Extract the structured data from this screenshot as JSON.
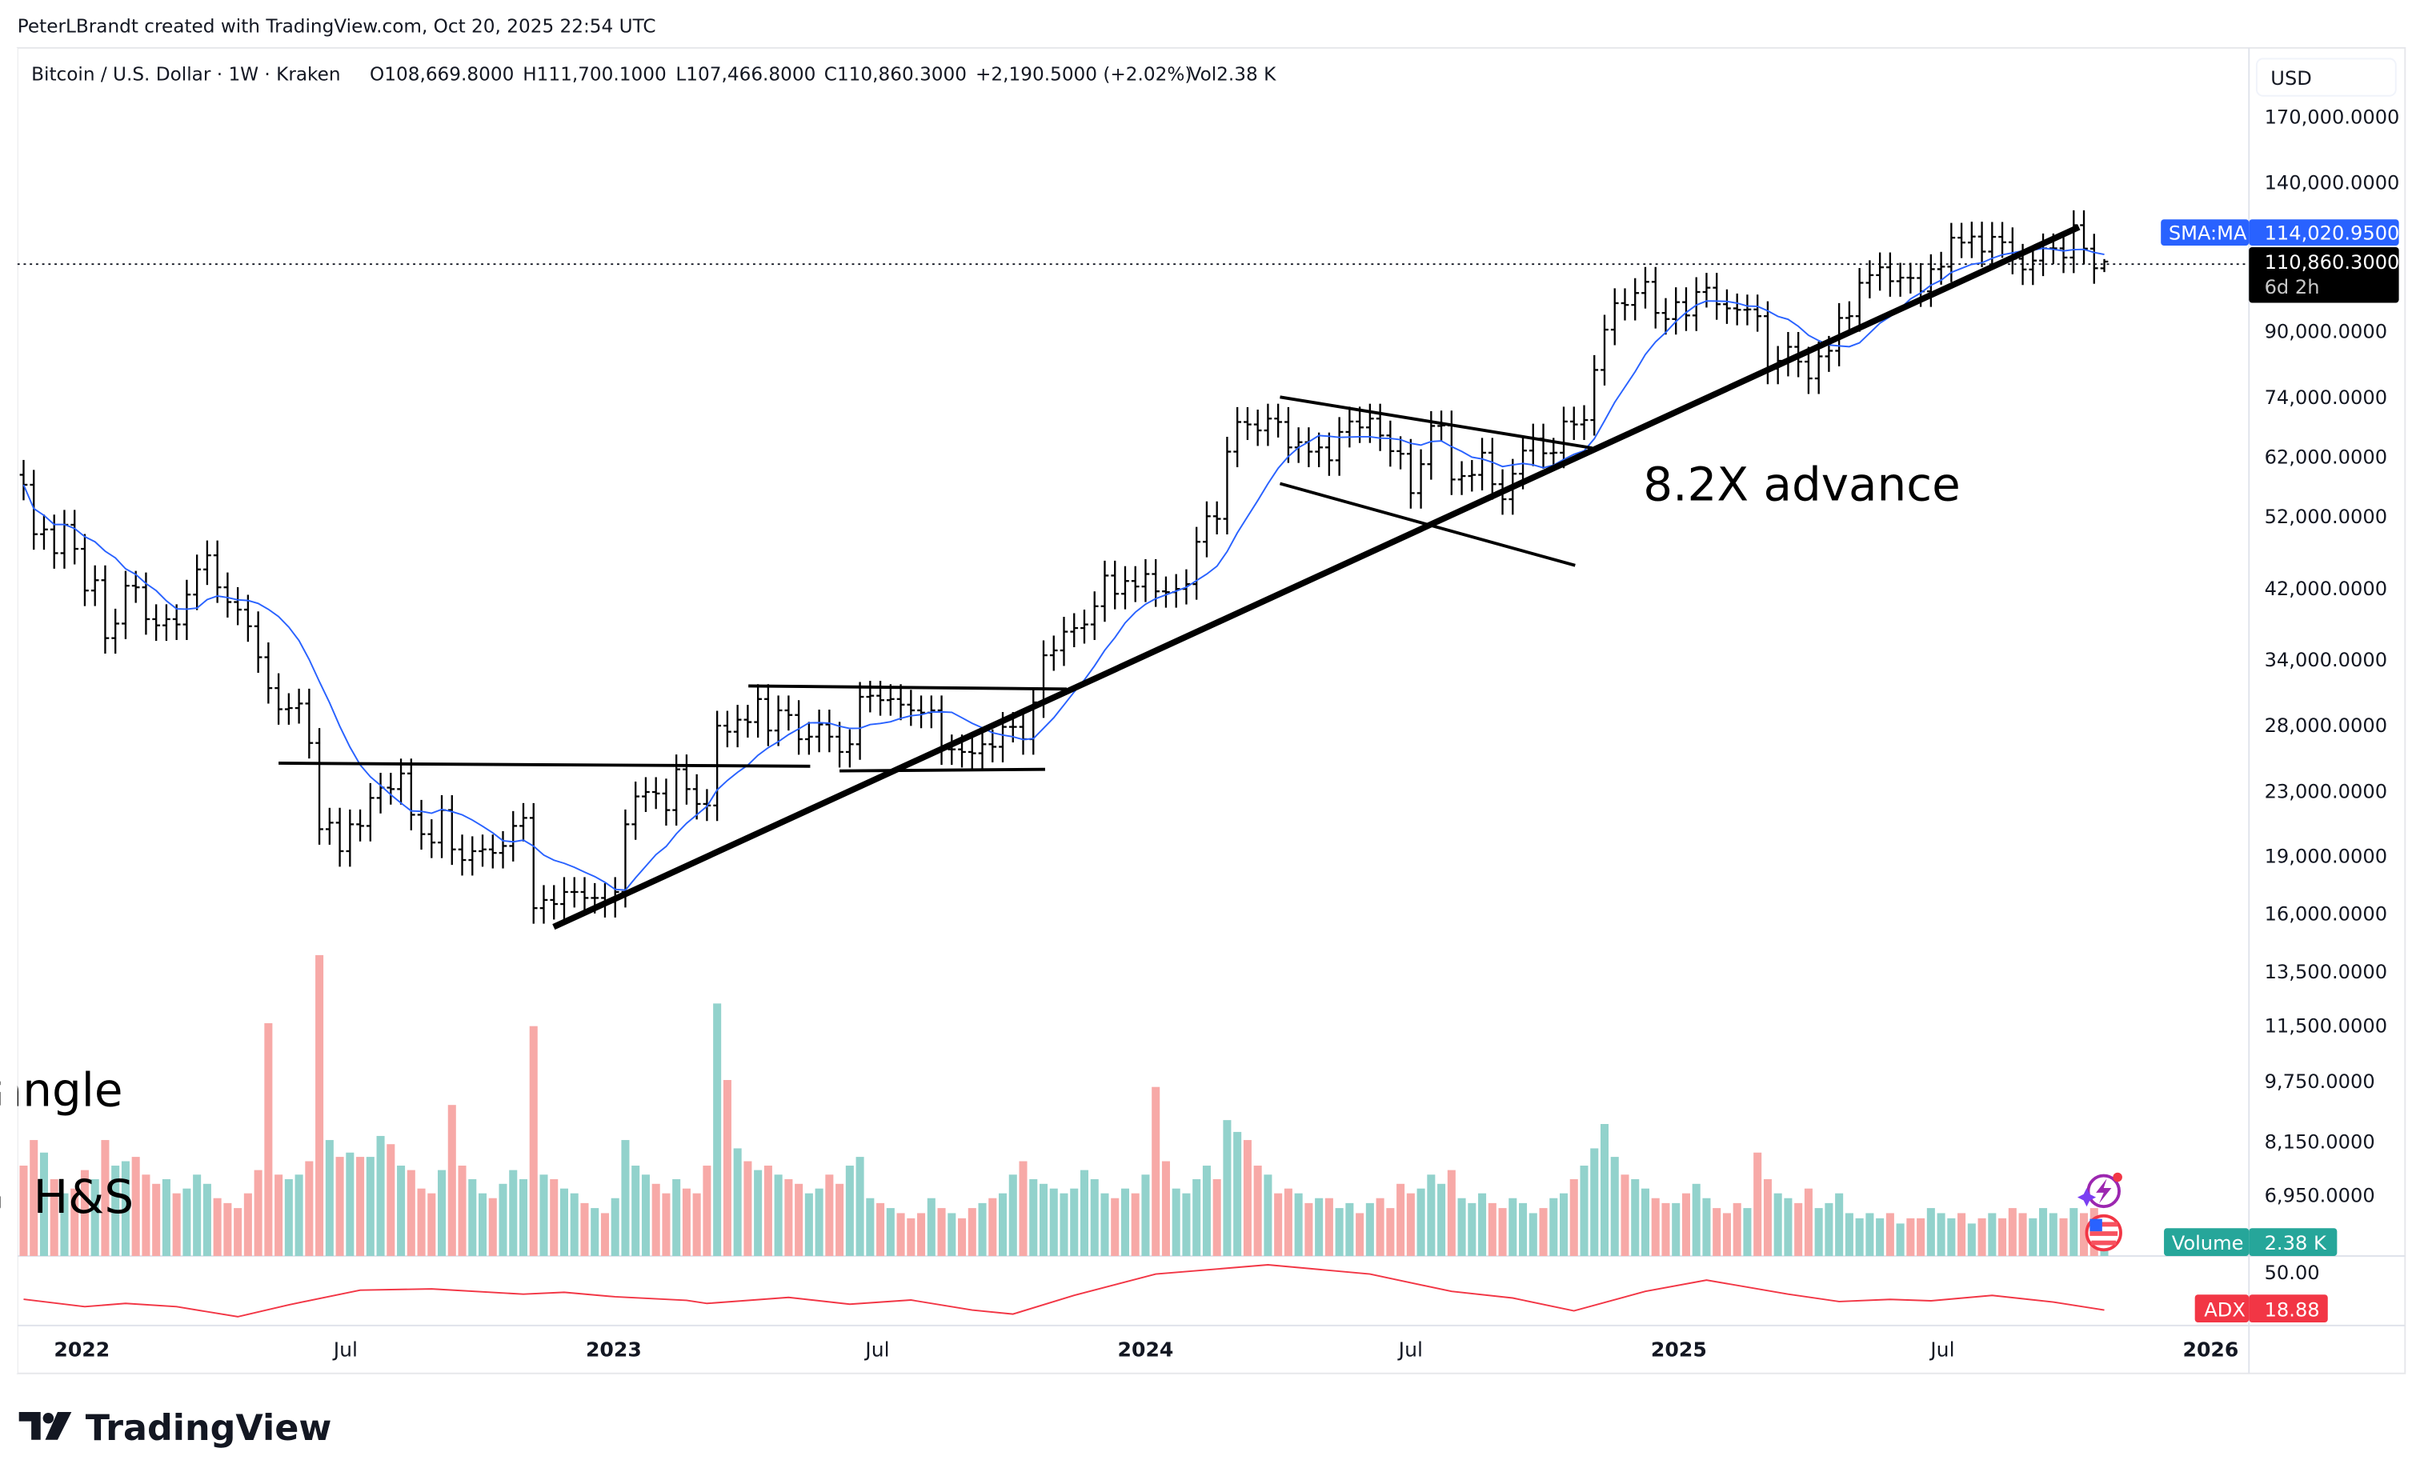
{
  "header": {
    "credit": "PeterLBrandt created with TradingView.com, Oct 20, 2025 22:54 UTC"
  },
  "legend": {
    "symbol": "Bitcoin / U.S. Dollar · 1W · Kraken",
    "open": "O108,669.8000",
    "high": "H111,700.1000",
    "low": "L107,466.8000",
    "close": "C110,860.3000",
    "change": "+2,190.5000 (+2.02%)",
    "volume": "Vol2.38 K"
  },
  "price_axis": {
    "currency": "USD"
  },
  "badges": {
    "sma_label": "SMA:MA",
    "sma_value": "114,020.9500",
    "last_price": "110,860.3000",
    "countdown": "6d 2h",
    "volume_label": "Volume",
    "volume_value": "2.38 K",
    "adx_label": "ADX",
    "adx_value": "18.88"
  },
  "annotations": {
    "advance": "8.2X advance",
    "triangle_fragment": "angle",
    "hs_fragment": "v H&S"
  },
  "brand": {
    "name": "TradingView"
  },
  "colors": {
    "sma": "#2962ff",
    "up_volume": "#92d2cc",
    "down_volume": "#f7a9a7",
    "adx": "#f23645",
    "volume_badge": "#26a69a",
    "bars": "#000000"
  },
  "icons": [
    "lightning-event-icon",
    "us-flag-icon"
  ],
  "chart_data": {
    "type": "ohlc-bar",
    "interval": "1W",
    "y_scale": "log",
    "grid": false,
    "price_ticks": [
      170000,
      140000,
      90000,
      74000,
      62000,
      52000,
      42000,
      34000,
      28000,
      23000,
      19000,
      16000
    ],
    "price_tick_labels": [
      "170,000.0000",
      "140,000.0000",
      "90,000.0000",
      "74,000.0000",
      "62,000.0000",
      "52,000.0000",
      "42,000.0000",
      "34,000.0000",
      "28,000.0000",
      "23,000.0000",
      "19,000.0000",
      "16,000.0000"
    ],
    "volume_ticks": [
      13500,
      11500,
      9750,
      8150,
      6950
    ],
    "volume_tick_labels": [
      "13,500.0000",
      "11,500.0000",
      "9,750.0000",
      "8,150.0000",
      "6,950.0000"
    ],
    "adx_ticks": [
      50
    ],
    "adx_tick_labels": [
      "50.00"
    ],
    "time_ticks": [
      {
        "label": "2022",
        "date": "2022-01-01",
        "bold": true
      },
      {
        "label": "Jul",
        "date": "2022-07-01",
        "bold": false
      },
      {
        "label": "2023",
        "date": "2023-01-01",
        "bold": true
      },
      {
        "label": "Jul",
        "date": "2023-07-01",
        "bold": false
      },
      {
        "label": "2024",
        "date": "2024-01-01",
        "bold": true
      },
      {
        "label": "Jul",
        "date": "2024-07-01",
        "bold": false
      },
      {
        "label": "2025",
        "date": "2025-01-01",
        "bold": true
      },
      {
        "label": "Jul",
        "date": "2025-07-01",
        "bold": false
      },
      {
        "label": "2026",
        "date": "2026-01-01",
        "bold": true
      }
    ],
    "last_bar": {
      "open": 108669.8,
      "high": 111700.1,
      "low": 107466.8,
      "close": 110860.3,
      "volume_k": 2.38
    },
    "sma_last": 114020.95,
    "adx_last": 18.88,
    "weekly_close": [
      57200,
      49400,
      50100,
      46700,
      50800,
      47300,
      41800,
      43100,
      36300,
      37900,
      42400,
      42200,
      38400,
      37700,
      38400,
      37800,
      41300,
      44500,
      46400,
      42200,
      40400,
      39500,
      37600,
      34300,
      31300,
      29400,
      29500,
      29900,
      26600,
      20600,
      21000,
      19300,
      20900,
      20800,
      22600,
      23300,
      23200,
      24300,
      21500,
      20300,
      19800,
      21800,
      19400,
      18800,
      19300,
      19400,
      19200,
      19600,
      20800,
      21300,
      16300,
      16700,
      16500,
      17100,
      17100,
      16800,
      16800,
      16600,
      17100,
      20900,
      22700,
      23000,
      22900,
      21800,
      24600,
      23200,
      22200,
      22100,
      28000,
      27500,
      28500,
      28300,
      30300,
      27600,
      29300,
      28900,
      26900,
      27100,
      28100,
      27100,
      25900,
      26500,
      30500,
      30600,
      30200,
      30300,
      29800,
      29300,
      29100,
      29300,
      26100,
      26100,
      25900,
      25800,
      26500,
      26300,
      27900,
      27900,
      26900,
      30000,
      34500,
      35000,
      37000,
      37400,
      37800,
      39900,
      43700,
      41400,
      43000,
      42300,
      43900,
      41700,
      41600,
      42000,
      42600,
      48300,
      52100,
      51700,
      63100,
      68900,
      68400,
      67200,
      69600,
      68900,
      63900,
      64900,
      63100,
      63900,
      61500,
      66900,
      69000,
      67800,
      69600,
      66200,
      63200,
      62700,
      55800,
      60800,
      68100,
      68200,
      58100,
      58700,
      58900,
      62900,
      57300,
      54800,
      59100,
      63300,
      65600,
      62800,
      62900,
      69000,
      68400,
      69300,
      80400,
      90600,
      98000,
      97500,
      101000,
      104400,
      95200,
      93500,
      98300,
      94500,
      101300,
      102600,
      97700,
      96500,
      96100,
      96200,
      94300,
      80700,
      82600,
      86100,
      82400,
      78400,
      83700,
      85100,
      93800,
      94300,
      104100,
      106500,
      109000,
      104600,
      105700,
      105600,
      101500,
      108400,
      109200,
      119000,
      117300,
      119400,
      114200,
      119300,
      117400,
      111800,
      108300,
      111200,
      115300,
      115300,
      112200,
      123500,
      115200,
      108700,
      110860.3
    ],
    "weekly_volume": [
      7600,
      8200,
      7900,
      7300,
      7000,
      7100,
      7500,
      7300,
      8200,
      7600,
      7700,
      7800,
      7400,
      7200,
      7300,
      7000,
      7100,
      7400,
      7200,
      6900,
      6800,
      6700,
      7000,
      7500,
      11600,
      7400,
      7300,
      7400,
      7700,
      14200,
      8200,
      7800,
      7900,
      7800,
      7800,
      8300,
      8100,
      7600,
      7500,
      7100,
      7000,
      7500,
      9100,
      7600,
      7300,
      7000,
      6900,
      7200,
      7500,
      7300,
      11500,
      7400,
      7300,
      7100,
      7000,
      6800,
      6700,
      6600,
      6900,
      8200,
      7600,
      7400,
      7200,
      7000,
      7300,
      7100,
      7000,
      7600,
      12300,
      9800,
      8000,
      7700,
      7500,
      7600,
      7400,
      7300,
      7200,
      7000,
      7100,
      7400,
      7200,
      7600,
      7800,
      6900,
      6800,
      6700,
      6600,
      6500,
      6600,
      6900,
      6700,
      6600,
      6500,
      6700,
      6800,
      6900,
      7000,
      7400,
      7700,
      7300,
      7200,
      7100,
      7000,
      7100,
      7500,
      7300,
      7000,
      6900,
      7100,
      7000,
      7400,
      9600,
      7700,
      7100,
      7000,
      7300,
      7600,
      7300,
      8700,
      8400,
      8200,
      7600,
      7400,
      7000,
      7100,
      7000,
      6800,
      6900,
      6900,
      6700,
      6800,
      6600,
      6800,
      6900,
      6700,
      7200,
      7000,
      7100,
      7400,
      7200,
      7500,
      6900,
      6800,
      7000,
      6800,
      6700,
      6900,
      6800,
      6600,
      6700,
      6900,
      7000,
      7300,
      7600,
      8000,
      8600,
      7800,
      7400,
      7300,
      7100,
      6900,
      6800,
      6800,
      7000,
      7200,
      6900,
      6700,
      6600,
      6800,
      6700,
      7900,
      7300,
      7000,
      6900,
      6800,
      7100,
      6700,
      6800,
      7000,
      6600,
      6500,
      6600,
      6500,
      6600,
      6400,
      6500,
      6500,
      6700,
      6600,
      6500,
      6600,
      6400,
      6500,
      6600,
      6500,
      6700,
      6600,
      6500,
      6700,
      6600,
      6500,
      6700,
      6600,
      6700,
      6200
    ],
    "adx": [
      [
        "2021-11-22",
        28.0
      ],
      [
        "2022-01-03",
        21.7
      ],
      [
        "2022-01-31",
        24.4
      ],
      [
        "2022-03-07",
        21.7
      ],
      [
        "2022-04-18",
        13.3
      ],
      [
        "2022-05-23",
        23.3
      ],
      [
        "2022-07-11",
        35.6
      ],
      [
        "2022-08-29",
        36.6
      ],
      [
        "2022-10-31",
        32.2
      ],
      [
        "2022-11-28",
        33.8
      ],
      [
        "2023-01-02",
        30.0
      ],
      [
        "2023-02-20",
        27.0
      ],
      [
        "2023-03-06",
        24.4
      ],
      [
        "2023-05-01",
        29.5
      ],
      [
        "2023-06-12",
        23.8
      ],
      [
        "2023-07-24",
        27.3
      ],
      [
        "2023-09-04",
        18.9
      ],
      [
        "2023-10-02",
        15.5
      ],
      [
        "2023-11-13",
        31.2
      ],
      [
        "2024-01-08",
        49.1
      ],
      [
        "2024-03-25",
        56.9
      ],
      [
        "2024-06-03",
        49.1
      ],
      [
        "2024-07-29",
        34.6
      ],
      [
        "2024-09-09",
        29.0
      ],
      [
        "2024-10-21",
        18.2
      ],
      [
        "2024-12-09",
        34.6
      ],
      [
        "2025-01-20",
        44.0
      ],
      [
        "2025-03-17",
        32.2
      ],
      [
        "2025-04-21",
        26.0
      ],
      [
        "2025-05-26",
        27.8
      ],
      [
        "2025-06-23",
        26.7
      ],
      [
        "2025-08-04",
        31.2
      ],
      [
        "2025-09-15",
        25.6
      ],
      [
        "2025-10-20",
        18.88
      ]
    ]
  }
}
